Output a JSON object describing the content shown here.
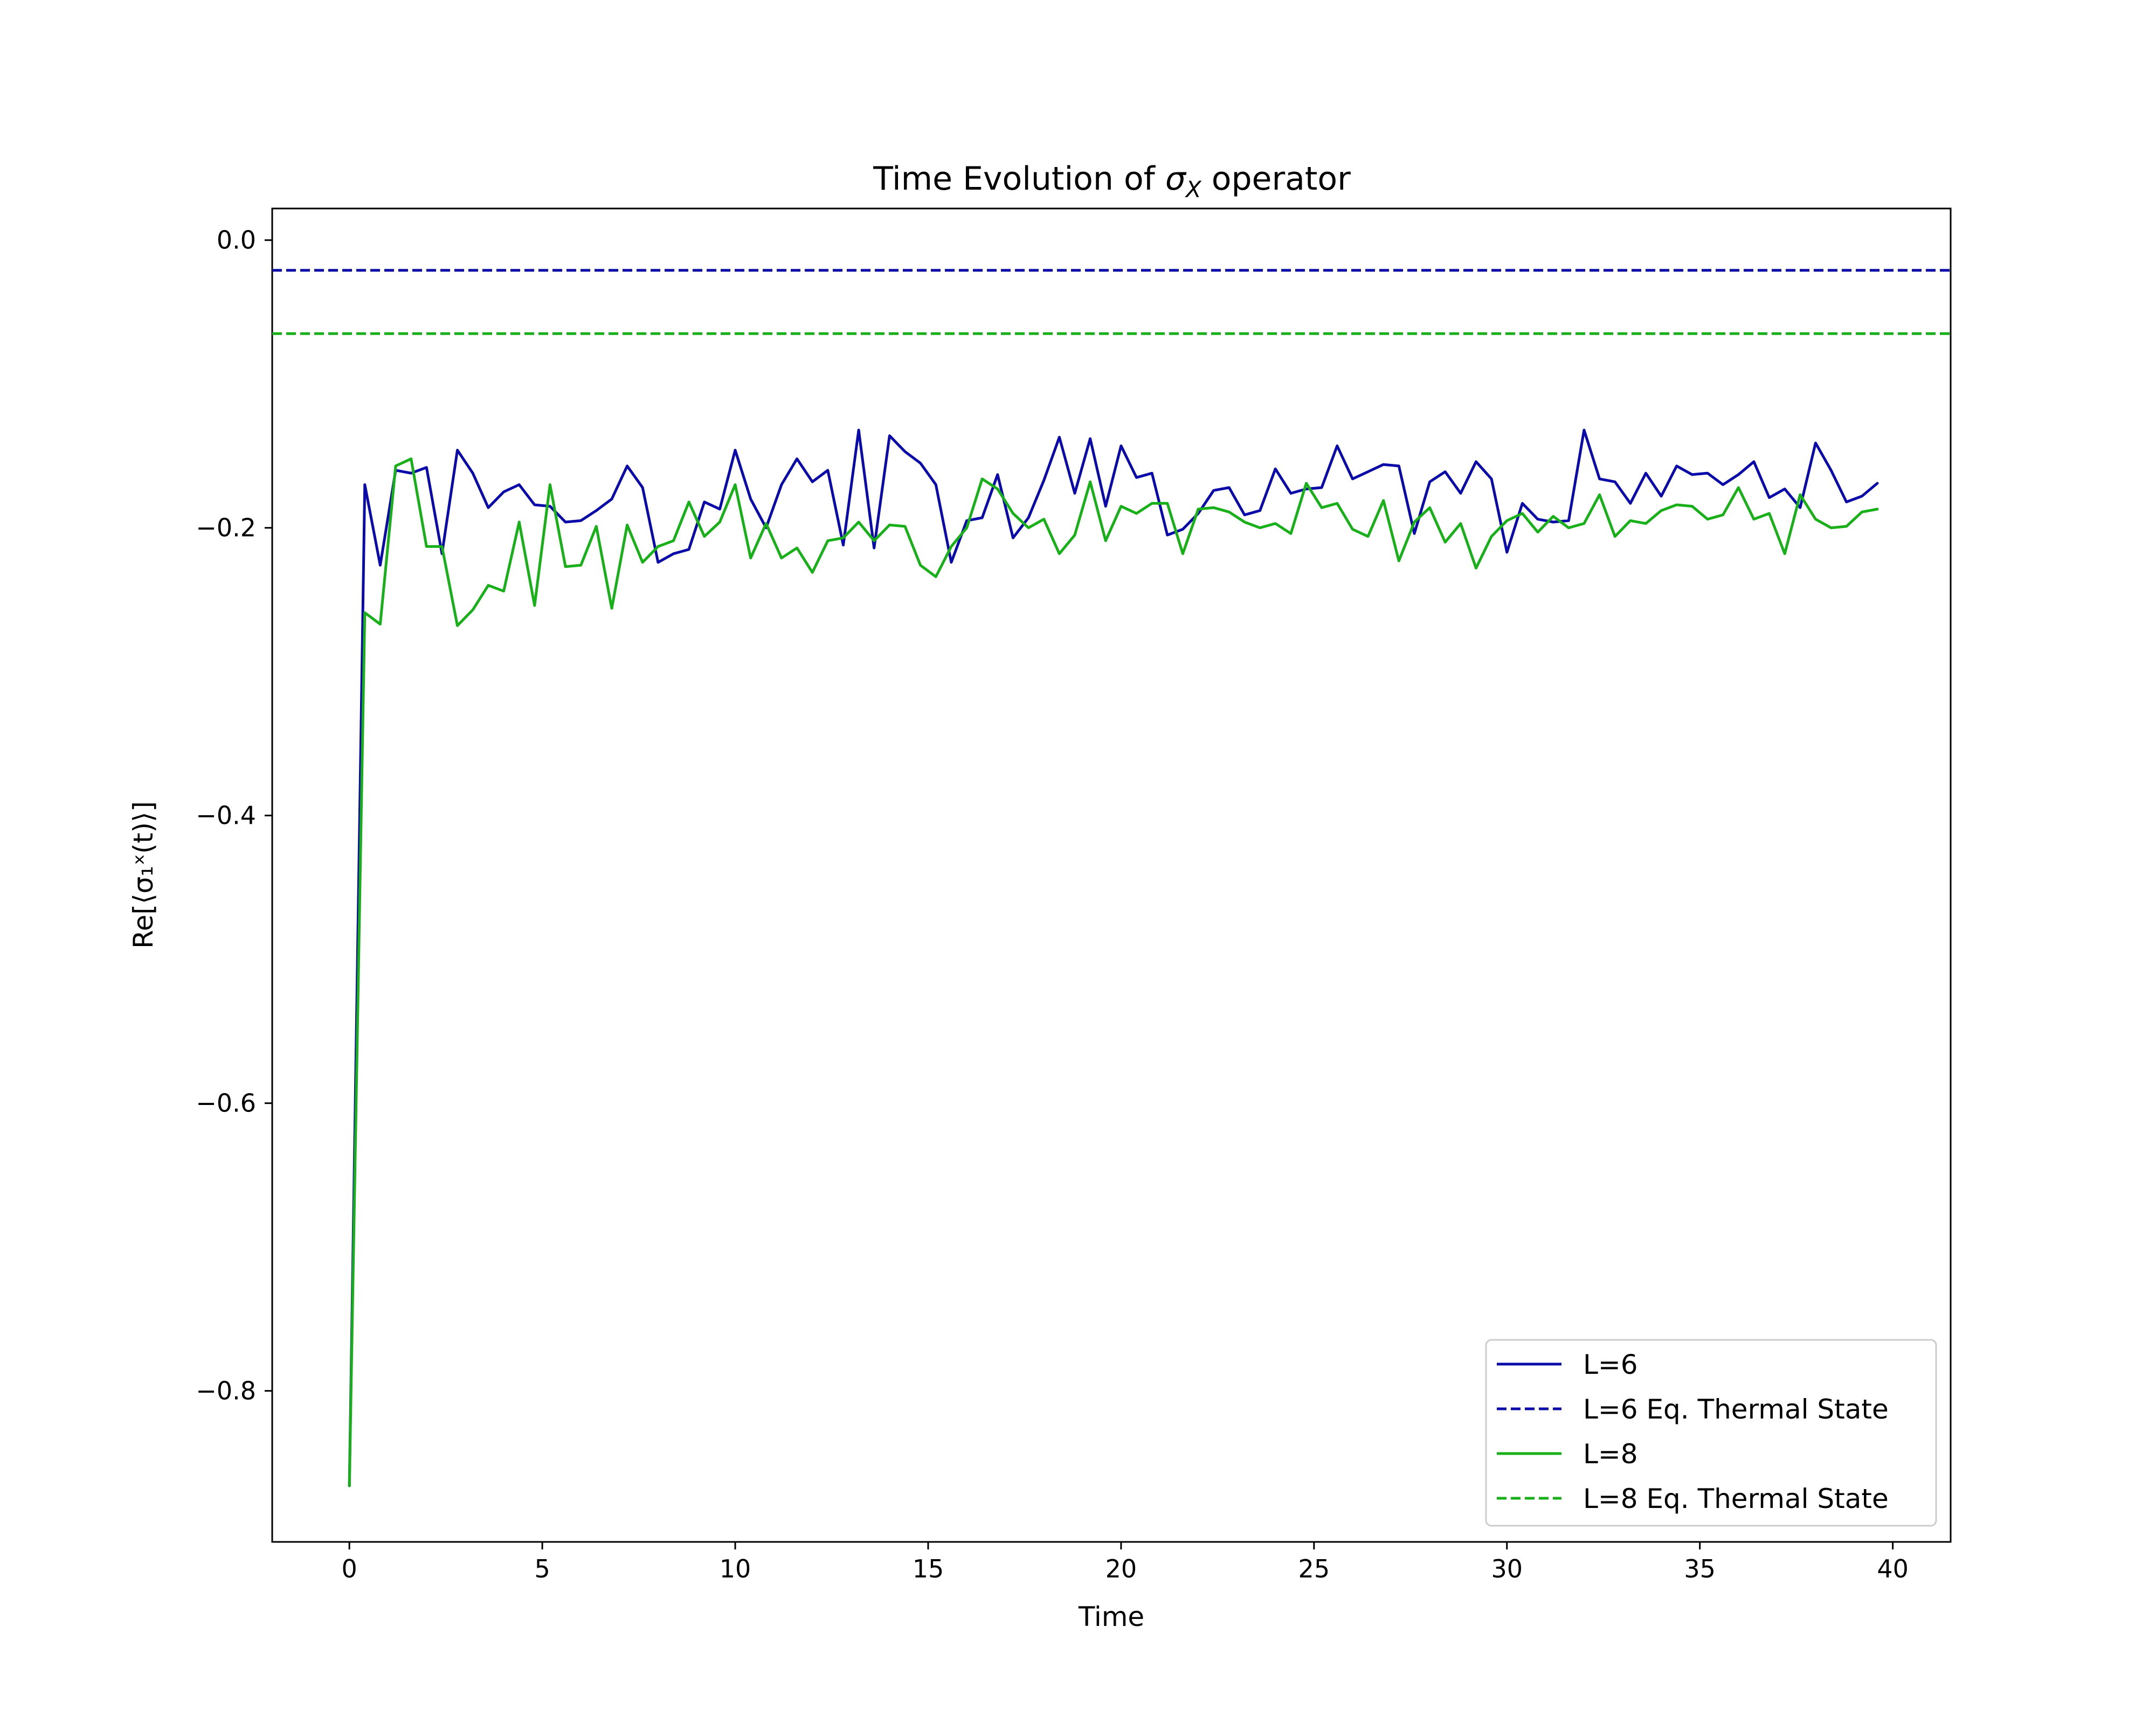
{
  "chart_data": {
    "type": "line",
    "title_prefix": "Time Evolution of ",
    "title_symbol": "σ",
    "title_subscript": "X",
    "title_suffix": " operator",
    "xlabel": "Time",
    "ylabel": "Re[⟨σ₁ˣ(t)⟩]",
    "xlim": [
      -2,
      41.5
    ],
    "ylim": [
      -0.905,
      0.022
    ],
    "xticks": [
      0,
      5,
      10,
      15,
      20,
      25,
      30,
      35,
      40
    ],
    "yticks": [
      0.0,
      -0.2,
      -0.4,
      -0.6,
      -0.8
    ],
    "ytick_labels": [
      "0.0",
      "−0.2",
      "−0.4",
      "−0.6",
      "−0.8"
    ],
    "grid": false,
    "legend_position": "lower-right",
    "x": [
      0.0,
      0.4,
      0.8,
      1.2,
      1.6,
      2.0,
      2.4,
      2.8,
      3.2,
      3.6,
      4.0,
      4.4,
      4.8,
      5.2,
      5.6,
      6.0,
      6.4,
      6.8,
      7.2,
      7.6,
      8.0,
      8.4,
      8.8,
      9.2,
      9.6,
      10.0,
      10.4,
      10.8,
      11.2,
      11.6,
      12.0,
      12.4,
      12.8,
      13.2,
      13.6,
      14.0,
      14.4,
      14.8,
      15.2,
      15.6,
      16.0,
      16.4,
      16.8,
      17.2,
      17.6,
      18.0,
      18.4,
      18.8,
      19.2,
      19.6,
      20.0,
      20.4,
      20.8,
      21.2,
      21.6,
      22.0,
      22.4,
      22.8,
      23.2,
      23.6,
      24.0,
      24.4,
      24.8,
      25.2,
      25.6,
      26.0,
      26.4,
      26.8,
      27.2,
      27.6,
      28.0,
      28.4,
      28.8,
      29.2,
      29.6,
      30.0,
      30.4,
      30.8,
      31.2,
      31.6,
      32.0,
      32.4,
      32.8,
      33.2,
      33.6,
      34.0,
      34.4,
      34.8,
      35.2,
      35.6,
      36.0,
      36.4,
      36.8,
      37.2,
      37.6,
      38.0,
      38.4,
      38.8,
      39.2,
      39.6
    ],
    "series": [
      {
        "name": "L=6",
        "style": "solid",
        "color": "#0a0aaa",
        "values": [
          -0.866,
          -0.17,
          -0.226,
          -0.16,
          -0.162,
          -0.158,
          -0.218,
          -0.146,
          -0.162,
          -0.186,
          -0.175,
          -0.17,
          -0.184,
          -0.185,
          -0.196,
          -0.195,
          -0.188,
          -0.18,
          -0.157,
          -0.172,
          -0.224,
          -0.218,
          -0.215,
          -0.182,
          -0.187,
          -0.146,
          -0.18,
          -0.2,
          -0.17,
          -0.152,
          -0.168,
          -0.16,
          -0.212,
          -0.132,
          -0.214,
          -0.136,
          -0.147,
          -0.155,
          -0.17,
          -0.224,
          -0.195,
          -0.193,
          -0.163,
          -0.207,
          -0.193,
          -0.167,
          -0.137,
          -0.176,
          -0.138,
          -0.185,
          -0.143,
          -0.165,
          -0.162,
          -0.205,
          -0.201,
          -0.19,
          -0.174,
          -0.172,
          -0.191,
          -0.188,
          -0.159,
          -0.176,
          -0.173,
          -0.172,
          -0.143,
          -0.166,
          -0.161,
          -0.156,
          -0.157,
          -0.204,
          -0.168,
          -0.161,
          -0.176,
          -0.154,
          -0.166,
          -0.217,
          -0.183,
          -0.194,
          -0.196,
          -0.195,
          -0.132,
          -0.166,
          -0.168,
          -0.183,
          -0.162,
          -0.178,
          -0.157,
          -0.163,
          -0.162,
          -0.17,
          -0.163,
          -0.154,
          -0.179,
          -0.173,
          -0.186,
          -0.141,
          -0.16,
          -0.182,
          -0.178,
          -0.169
        ]
      },
      {
        "name": "L=6 Eq. Thermal State",
        "style": "dashed",
        "color": "#0a0aaa",
        "constant": -0.021
      },
      {
        "name": "L=8",
        "style": "solid",
        "color": "#18b018",
        "values": [
          -0.866,
          -0.259,
          -0.267,
          -0.157,
          -0.152,
          -0.213,
          -0.213,
          -0.268,
          -0.257,
          -0.24,
          -0.244,
          -0.196,
          -0.254,
          -0.17,
          -0.227,
          -0.226,
          -0.199,
          -0.256,
          -0.198,
          -0.224,
          -0.213,
          -0.209,
          -0.182,
          -0.206,
          -0.196,
          -0.17,
          -0.221,
          -0.197,
          -0.221,
          -0.214,
          -0.231,
          -0.209,
          -0.207,
          -0.196,
          -0.209,
          -0.198,
          -0.199,
          -0.226,
          -0.234,
          -0.213,
          -0.2,
          -0.166,
          -0.173,
          -0.19,
          -0.2,
          -0.194,
          -0.218,
          -0.205,
          -0.168,
          -0.209,
          -0.185,
          -0.19,
          -0.183,
          -0.183,
          -0.218,
          -0.187,
          -0.186,
          -0.189,
          -0.196,
          -0.2,
          -0.197,
          -0.204,
          -0.169,
          -0.186,
          -0.183,
          -0.201,
          -0.206,
          -0.181,
          -0.223,
          -0.196,
          -0.186,
          -0.21,
          -0.197,
          -0.228,
          -0.206,
          -0.195,
          -0.19,
          -0.203,
          -0.192,
          -0.2,
          -0.197,
          -0.177,
          -0.206,
          -0.195,
          -0.197,
          -0.188,
          -0.184,
          -0.185,
          -0.194,
          -0.191,
          -0.172,
          -0.194,
          -0.19,
          -0.218,
          -0.177,
          -0.194,
          -0.2,
          -0.199,
          -0.189,
          -0.187
        ]
      },
      {
        "name": "L=8 Eq. Thermal State",
        "style": "dashed",
        "color": "#18b018",
        "constant": -0.065
      }
    ]
  }
}
